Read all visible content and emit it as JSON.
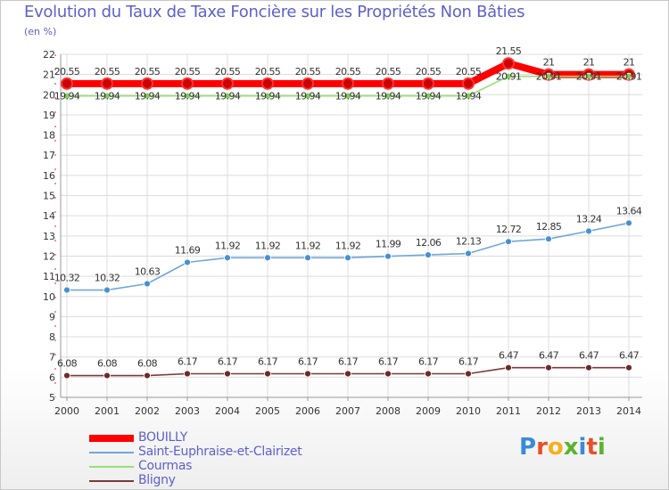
{
  "header": {
    "title": "Evolution du Taux de Taxe Foncière sur les Propriétés Non Bâties",
    "unit": "(en %)"
  },
  "logo": {
    "text": "Proxiti",
    "letters": [
      "P",
      "r",
      "o",
      "x",
      "i",
      "t",
      "i"
    ],
    "colors": [
      "#3a8ad6",
      "#e84f2a",
      "#f6b01e",
      "#59b42c",
      "#3a8ad6",
      "#e84f2a",
      "#59b42c"
    ]
  },
  "chart_data": {
    "type": "line",
    "title": "Evolution du Taux de Taxe Foncière sur les Propriétés Non Bâties",
    "ylabel": "(en %)",
    "xlabel": "",
    "ylim": [
      5,
      22
    ],
    "yticks": [
      5,
      6,
      7,
      8,
      9,
      10,
      11,
      12,
      13,
      14,
      15,
      16,
      17,
      18,
      19,
      20,
      21,
      22
    ],
    "categories": [
      "2000",
      "2001",
      "2002",
      "2003",
      "2004",
      "2005",
      "2006",
      "2007",
      "2008",
      "2009",
      "2010",
      "2011",
      "2012",
      "2013",
      "2014"
    ],
    "legend_position": "bottom-left",
    "series": [
      {
        "name": "BOUILLY",
        "color": "#ff0000",
        "marker": "#cc0000",
        "values": [
          20.55,
          20.55,
          20.55,
          20.55,
          20.55,
          20.55,
          20.55,
          20.55,
          20.55,
          20.55,
          20.55,
          21.55,
          21,
          21,
          21
        ],
        "labels": [
          "20.55",
          "20.55",
          "20.55",
          "20.55",
          "20.55",
          "20.55",
          "20.55",
          "20.55",
          "20.55",
          "20.55",
          "20.55",
          "21.55",
          "21",
          "21",
          "21"
        ]
      },
      {
        "name": "Saint-Euphraise-et-Clairizet",
        "color": "#6fa7db",
        "marker": "#4a90d0",
        "values": [
          10.32,
          10.32,
          10.63,
          11.69,
          11.92,
          11.92,
          11.92,
          11.92,
          11.99,
          12.06,
          12.13,
          12.72,
          12.85,
          13.24,
          13.64
        ],
        "labels": [
          "10.32",
          "10.32",
          "10.63",
          "11.69",
          "11.92",
          "11.92",
          "11.92",
          "11.92",
          "11.99",
          "12.06",
          "12.13",
          "12.72",
          "12.85",
          "13.24",
          "13.64"
        ]
      },
      {
        "name": "Courmas",
        "color": "#99dd77",
        "marker": "#7fd154",
        "values": [
          19.94,
          19.94,
          19.94,
          19.94,
          19.94,
          19.94,
          19.94,
          19.94,
          19.94,
          19.94,
          19.94,
          20.91,
          20.91,
          20.91,
          20.91
        ],
        "labels": [
          "19.94",
          "19.94",
          "19.94",
          "19.94",
          "19.94",
          "19.94",
          "19.94",
          "19.94",
          "19.94",
          "19.94",
          "19.94",
          "20.91",
          "20.91",
          "20.91",
          "20.91"
        ]
      },
      {
        "name": "Bligny",
        "color": "#7a3a3a",
        "marker": "#6b2a2a",
        "values": [
          6.08,
          6.08,
          6.08,
          6.17,
          6.17,
          6.17,
          6.17,
          6.17,
          6.17,
          6.17,
          6.17,
          6.47,
          6.47,
          6.47,
          6.47
        ],
        "labels": [
          "6.08",
          "6.08",
          "6.08",
          "6.17",
          "6.17",
          "6.17",
          "6.17",
          "6.17",
          "6.17",
          "6.17",
          "6.17",
          "6.47",
          "6.47",
          "6.47",
          "6.47"
        ]
      }
    ]
  }
}
